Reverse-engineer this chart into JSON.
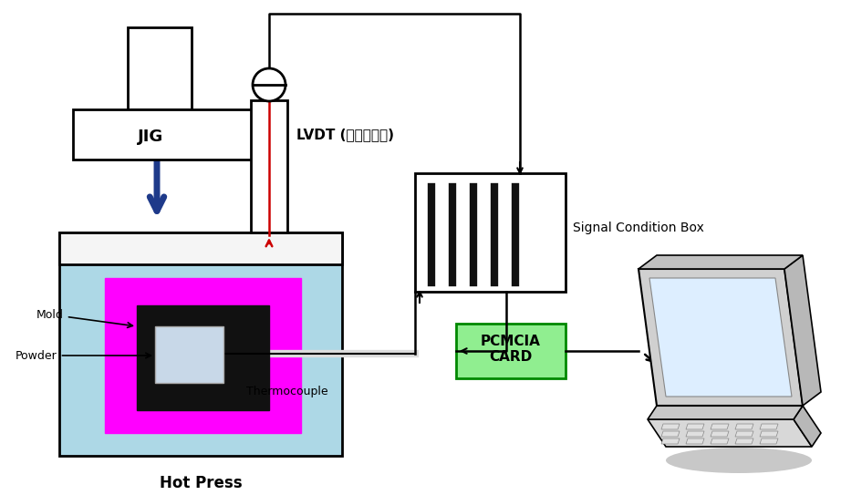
{
  "bg_color": "#ffffff",
  "jig_label": "JIG",
  "lvdt_label": "LVDT (포텐션메터)",
  "signal_label": "Signal Condition Box",
  "pcmcia_label": "PCMCIA\nCARD",
  "mold_label": "Mold",
  "powder_label": "Powder",
  "thermocouple_label": "Thermocouple",
  "hotpress_label": "Hot Press",
  "hotpress_color": "#add8e6",
  "mold_color": "#ff00ff",
  "black_color": "#111111",
  "powder_color": "#c8d8e8",
  "pcmcia_color": "#90ee90",
  "pcmcia_border": "#008800",
  "blue_arrow_color": "#1e3a8a",
  "red_color": "#cc0000",
  "line_color": "#000000",
  "signal_bar_color": "#111111"
}
